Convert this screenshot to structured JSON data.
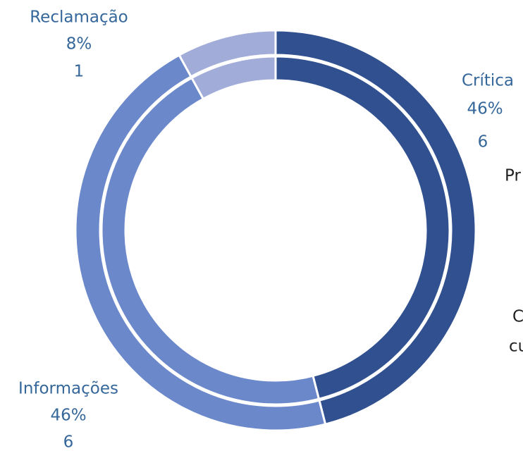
{
  "chart_data": {
    "type": "donut",
    "categories": [
      "Crítica",
      "Informações",
      "Reclamação"
    ],
    "values": [
      46,
      46,
      8
    ],
    "value_labels": [
      "46%",
      "46%",
      "8%"
    ],
    "counts": [
      6,
      6,
      1
    ],
    "colors": [
      "#30508f",
      "#6b88cb",
      "#a1acd9"
    ],
    "annotations": [
      "Pr",
      "C",
      "cu"
    ]
  }
}
